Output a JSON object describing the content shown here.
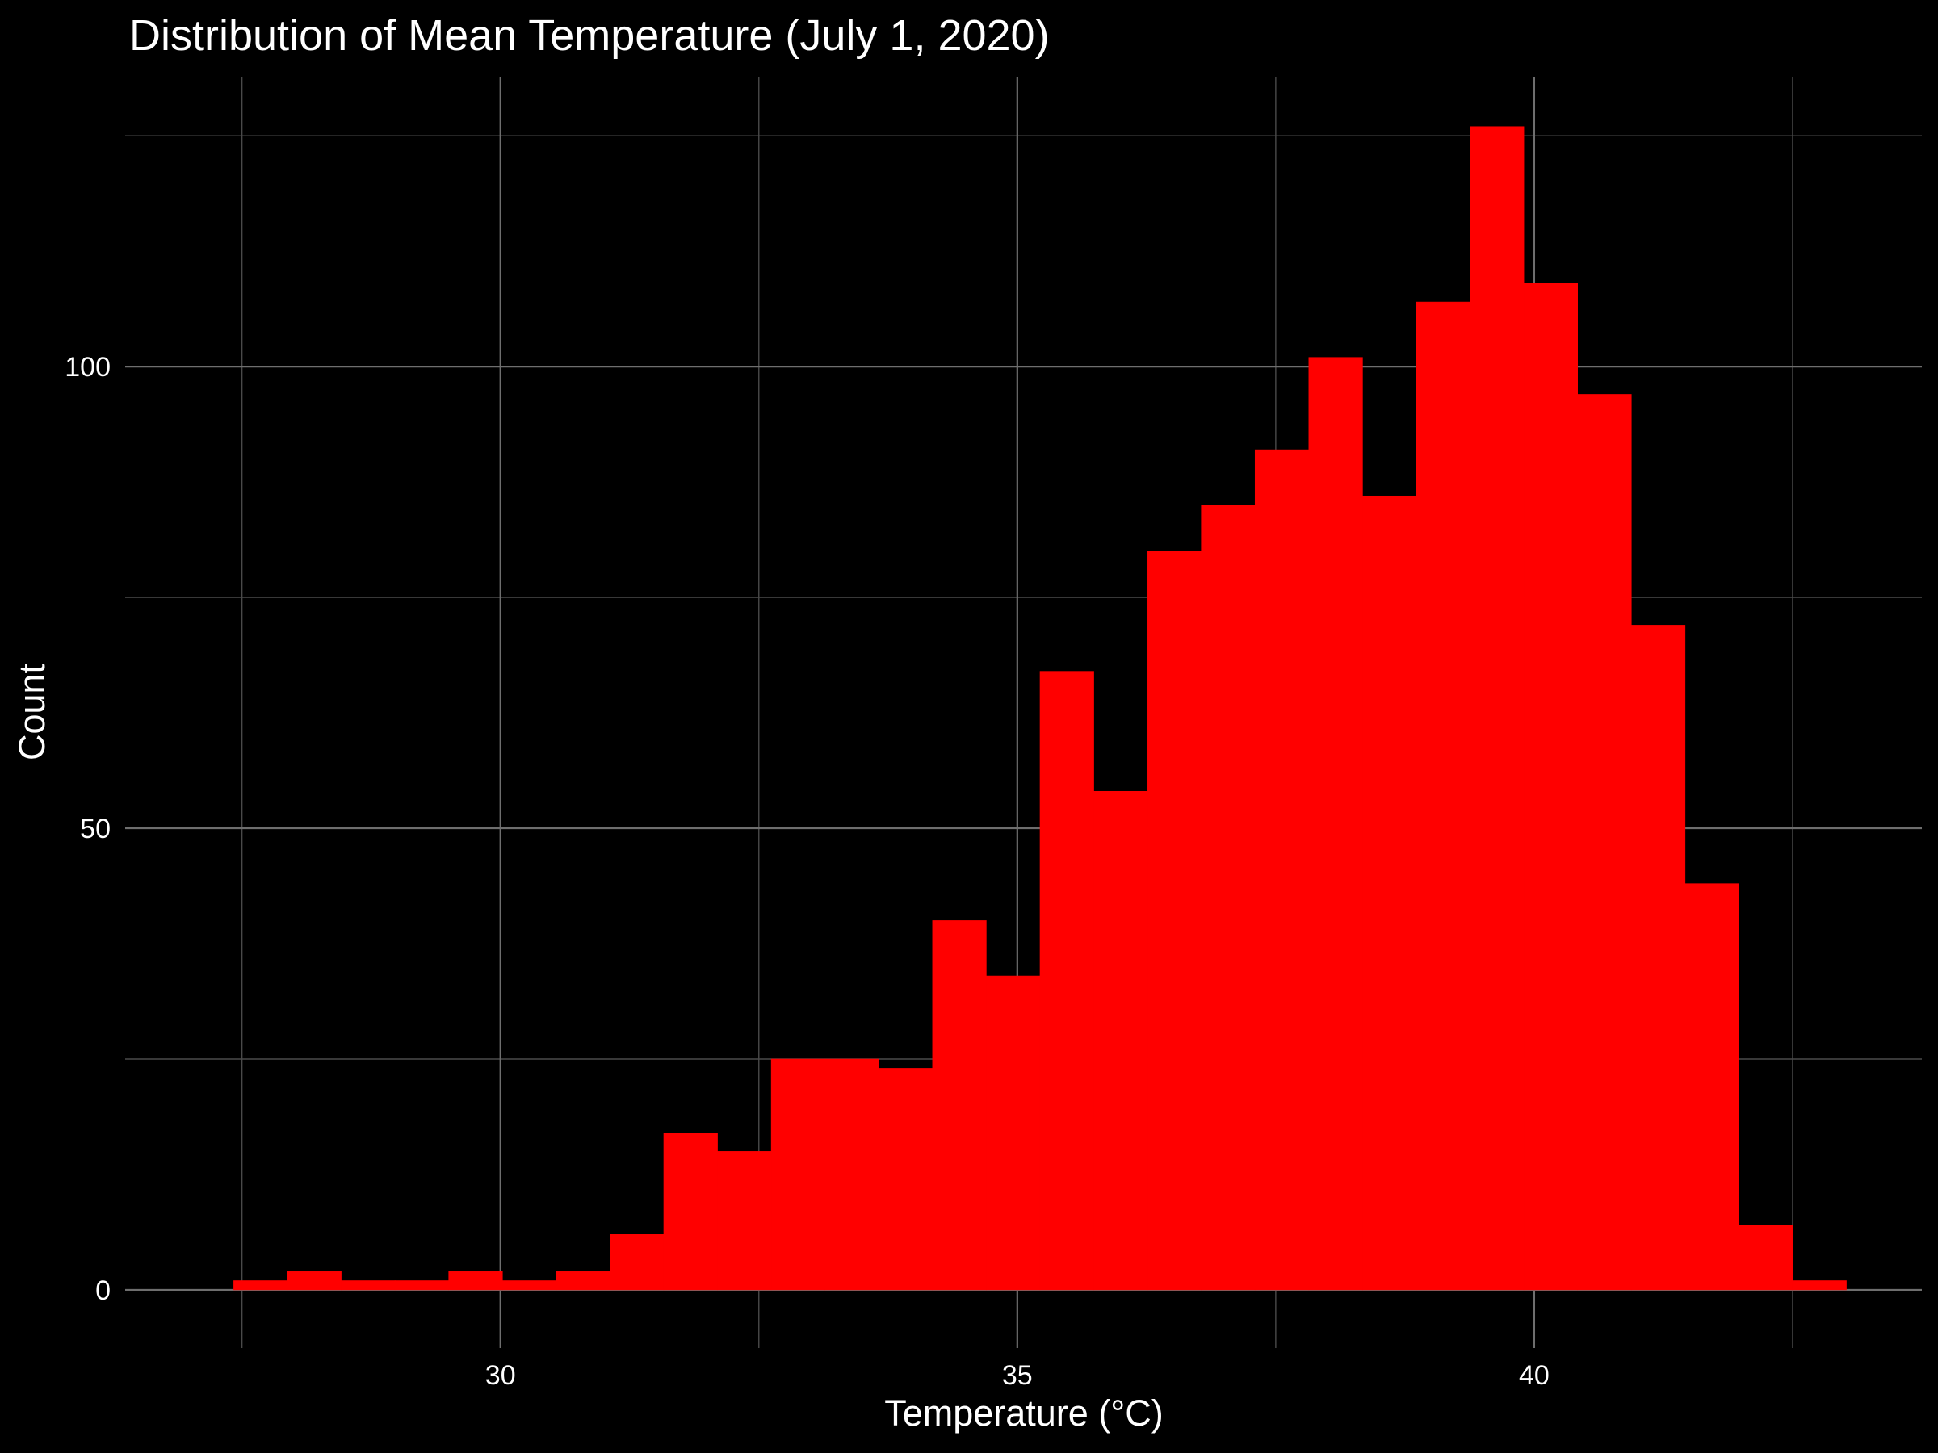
{
  "chart_data": {
    "type": "bar",
    "title": "Distribution of Mean Temperature (July 1, 2020)",
    "xlabel": "Temperature (°C)",
    "ylabel": "Count",
    "xlim": [
      26.37,
      43.75
    ],
    "ylim": [
      -6.3,
      131.4
    ],
    "x_ticks": [
      30,
      35,
      40
    ],
    "x_minor_ticks": [
      27.5,
      32.5,
      37.5,
      42.5
    ],
    "y_ticks": [
      0,
      50,
      100
    ],
    "y_minor_ticks": [
      25,
      75,
      125
    ],
    "grid": true,
    "bar_color": "#ff0000",
    "background": "#000000",
    "bin_width": 0.52,
    "bins": [
      {
        "x0": 27.42,
        "x1": 27.94,
        "count": 1
      },
      {
        "x0": 27.94,
        "x1": 28.46,
        "count": 2
      },
      {
        "x0": 28.46,
        "x1": 28.98,
        "count": 1
      },
      {
        "x0": 28.98,
        "x1": 29.5,
        "count": 1
      },
      {
        "x0": 29.5,
        "x1": 30.02,
        "count": 2
      },
      {
        "x0": 30.02,
        "x1": 30.54,
        "count": 1
      },
      {
        "x0": 30.54,
        "x1": 31.06,
        "count": 2
      },
      {
        "x0": 31.06,
        "x1": 31.58,
        "count": 6
      },
      {
        "x0": 31.58,
        "x1": 32.1,
        "count": 17
      },
      {
        "x0": 32.1,
        "x1": 32.62,
        "count": 15
      },
      {
        "x0": 32.62,
        "x1": 33.14,
        "count": 25
      },
      {
        "x0": 33.14,
        "x1": 33.66,
        "count": 25
      },
      {
        "x0": 33.66,
        "x1": 34.18,
        "count": 24
      },
      {
        "x0": 34.18,
        "x1": 34.7,
        "count": 40
      },
      {
        "x0": 34.7,
        "x1": 35.22,
        "count": 34
      },
      {
        "x0": 35.22,
        "x1": 35.74,
        "count": 67
      },
      {
        "x0": 35.74,
        "x1": 36.26,
        "count": 54
      },
      {
        "x0": 36.26,
        "x1": 36.78,
        "count": 80
      },
      {
        "x0": 36.78,
        "x1": 37.3,
        "count": 85
      },
      {
        "x0": 37.3,
        "x1": 37.82,
        "count": 91
      },
      {
        "x0": 37.82,
        "x1": 38.34,
        "count": 101
      },
      {
        "x0": 38.34,
        "x1": 38.86,
        "count": 86
      },
      {
        "x0": 38.86,
        "x1": 39.38,
        "count": 107
      },
      {
        "x0": 39.38,
        "x1": 39.9,
        "count": 126
      },
      {
        "x0": 39.9,
        "x1": 40.42,
        "count": 109
      },
      {
        "x0": 40.42,
        "x1": 40.94,
        "count": 97
      },
      {
        "x0": 40.94,
        "x1": 41.46,
        "count": 72
      },
      {
        "x0": 41.46,
        "x1": 41.98,
        "count": 44
      },
      {
        "x0": 41.98,
        "x1": 42.5,
        "count": 7
      },
      {
        "x0": 42.5,
        "x1": 43.02,
        "count": 1
      }
    ]
  }
}
